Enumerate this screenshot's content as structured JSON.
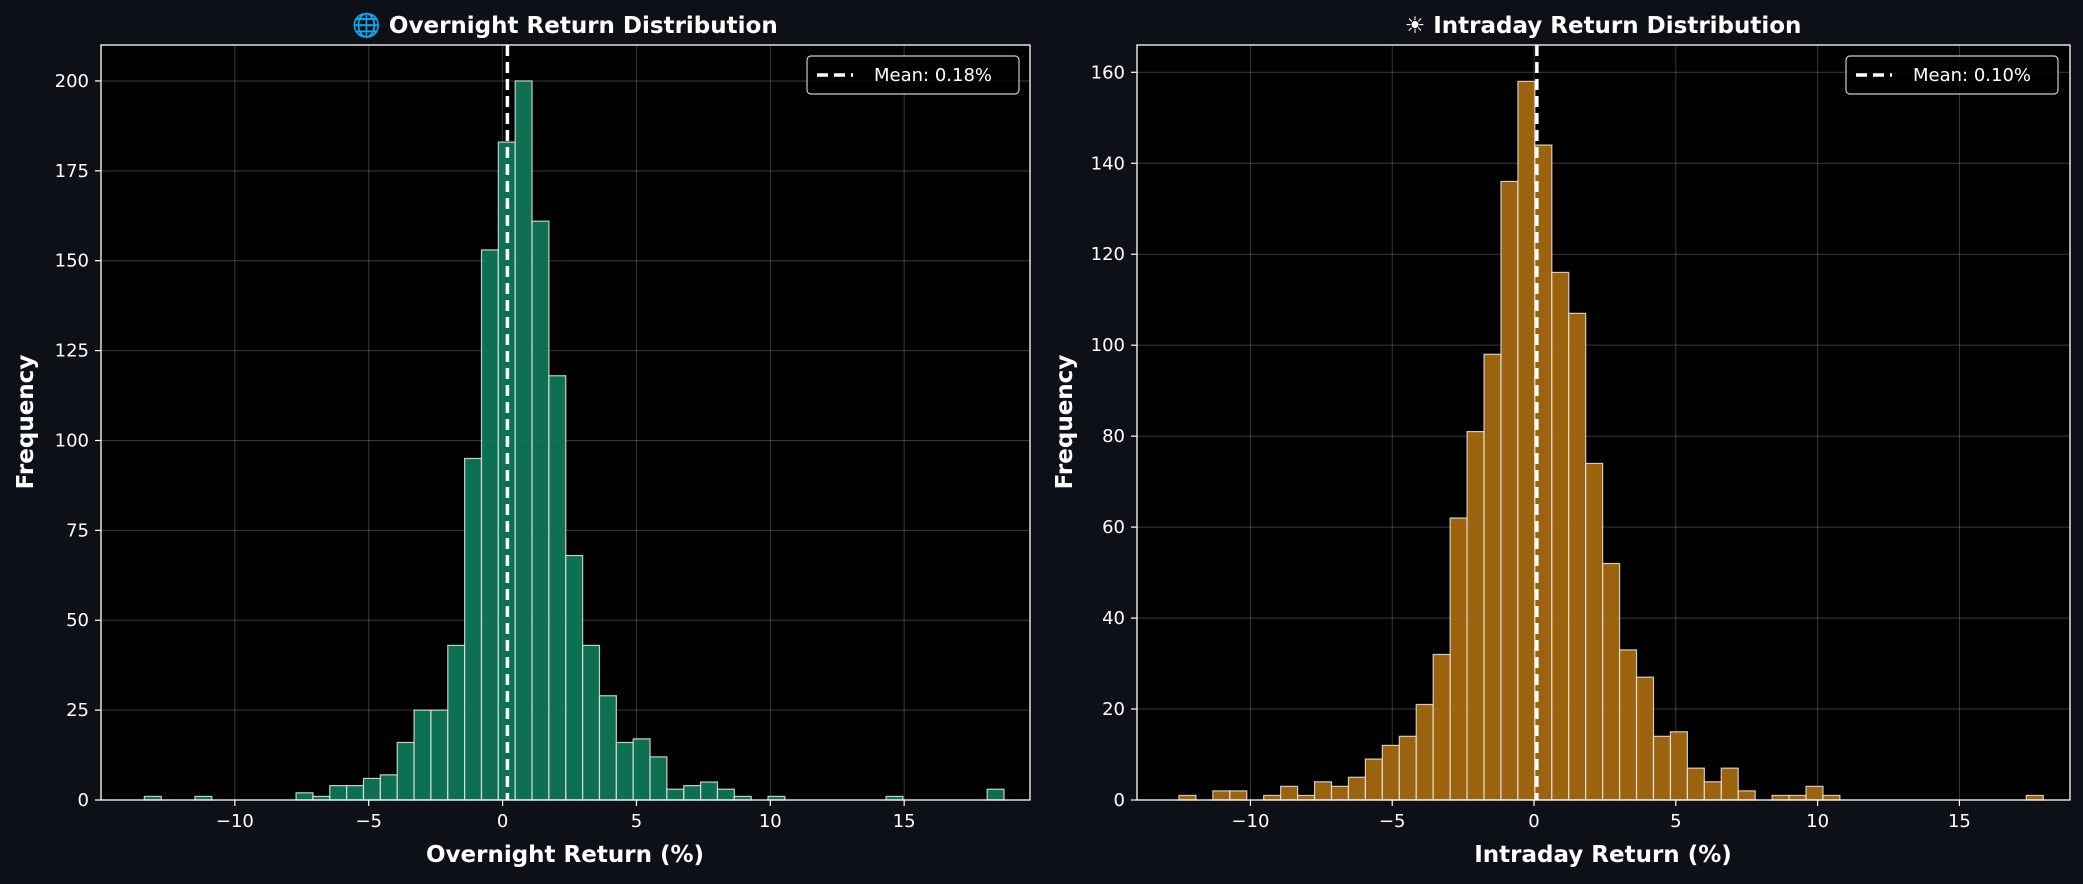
{
  "colors": {
    "page_bg": "#0d1117",
    "plot_bg": "#000000",
    "overnight_bar": "#0f7a5a",
    "intraday_bar": "#a86b0f",
    "bar_edge": "#e6e6e6",
    "mean_line": "#ffffff",
    "grid": "#ffffff",
    "axis_text": "#ffffff"
  },
  "chart_data": [
    {
      "type": "bar",
      "id": "overnight",
      "title": "🌐 Overnight Return Distribution",
      "title_icon": "globe-icon",
      "xlabel": "Overnight Return (%)",
      "ylabel": "Frequency",
      "xlim": [
        -15.0,
        19.7
      ],
      "ylim": [
        0,
        210
      ],
      "xticks": [
        -10,
        -5,
        0,
        5,
        10,
        15
      ],
      "xtick_labels": [
        "−10",
        "−5",
        "0",
        "5",
        "10",
        "15"
      ],
      "yticks": [
        0,
        25,
        50,
        75,
        100,
        125,
        150,
        175,
        200
      ],
      "ytick_labels": [
        "0",
        "25",
        "50",
        "75",
        "100",
        "125",
        "150",
        "175",
        "200"
      ],
      "grid": true,
      "mean": 0.18,
      "legend": {
        "label": "Mean: 0.18%",
        "position": "top-right"
      },
      "bins": {
        "start": -13.38,
        "width": 0.6296,
        "counts": [
          1,
          0,
          0,
          1,
          0,
          0,
          0,
          0,
          0,
          2,
          1,
          4,
          4,
          6,
          7,
          16,
          25,
          25,
          43,
          95,
          153,
          183,
          200,
          161,
          118,
          68,
          43,
          29,
          16,
          17,
          12,
          3,
          4,
          5,
          3,
          1,
          0,
          1,
          0,
          0,
          0,
          0,
          0,
          0,
          1,
          0,
          0,
          0,
          0,
          0,
          3
        ]
      }
    },
    {
      "type": "bar",
      "id": "intraday",
      "title": "☀ Intraday Return Distribution",
      "title_icon": "sun-icon",
      "xlabel": "Intraday Return (%)",
      "ylabel": "Frequency",
      "xlim": [
        -14.0,
        18.9
      ],
      "ylim": [
        0,
        166
      ],
      "xticks": [
        -10,
        -5,
        0,
        5,
        10,
        15
      ],
      "xtick_labels": [
        "−10",
        "−5",
        "0",
        "5",
        "10",
        "15"
      ],
      "yticks": [
        0,
        20,
        40,
        60,
        80,
        100,
        120,
        140,
        160
      ],
      "ytick_labels": [
        "0",
        "20",
        "40",
        "60",
        "80",
        "100",
        "120",
        "140",
        "160"
      ],
      "grid": true,
      "mean": 0.1,
      "legend": {
        "label": "Mean: 0.10%",
        "position": "top-right"
      },
      "bins": {
        "start": -12.52,
        "width": 0.5976,
        "counts": [
          1,
          0,
          2,
          2,
          0,
          1,
          3,
          1,
          4,
          3,
          5,
          9,
          12,
          14,
          21,
          32,
          62,
          81,
          98,
          136,
          158,
          144,
          116,
          107,
          74,
          52,
          33,
          27,
          14,
          15,
          7,
          4,
          7,
          2,
          0,
          1,
          1,
          3,
          1,
          0,
          0,
          0,
          0,
          0,
          0,
          0,
          0,
          0,
          0,
          0,
          1
        ]
      }
    }
  ]
}
